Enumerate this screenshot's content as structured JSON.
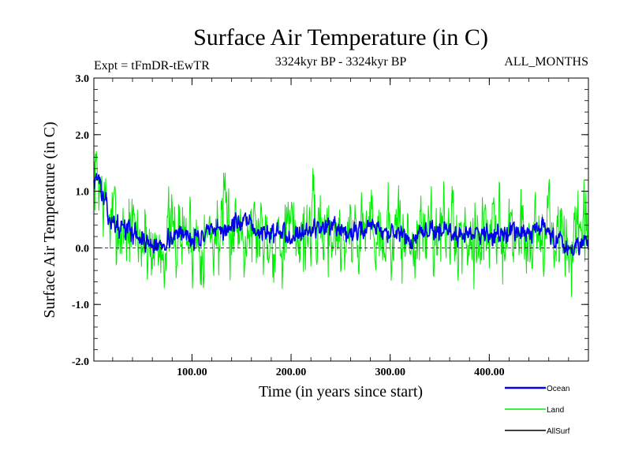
{
  "chart_data": {
    "type": "line",
    "title": "Surface Air Temperature (in C)",
    "subtitle_left": "Expt = tFmDR-tEwTR",
    "subtitle_center": "3324kyr BP - 3324kyr BP",
    "subtitle_right": "ALL_MONTHS",
    "xlabel": "Time (in years since start)",
    "ylabel": "Surface Air Temperature (in C)",
    "xlim": [
      1,
      500
    ],
    "ylim": [
      -2.0,
      3.0
    ],
    "x_ticks": [
      {
        "value": 100,
        "label": "100.00"
      },
      {
        "value": 200,
        "label": "200.00"
      },
      {
        "value": 300,
        "label": "300.00"
      },
      {
        "value": 400,
        "label": "400.00"
      }
    ],
    "y_ticks": [
      {
        "value": -2.0,
        "label": "-2.0"
      },
      {
        "value": -1.0,
        "label": "-1.0"
      },
      {
        "value": 0.0,
        "label": "0.0"
      },
      {
        "value": 1.0,
        "label": "1.0"
      },
      {
        "value": 2.0,
        "label": "2.0"
      },
      {
        "value": 3.0,
        "label": "3.0"
      }
    ],
    "reference_line": 0.0,
    "series": [
      {
        "name": "Land",
        "color": "#00ee00",
        "anchors": [
          [
            1,
            1.2
          ],
          [
            5,
            1.3
          ],
          [
            10,
            0.9
          ],
          [
            15,
            0.6
          ],
          [
            20,
            0.45
          ],
          [
            30,
            0.35
          ],
          [
            40,
            0.3
          ],
          [
            50,
            0.15
          ],
          [
            60,
            0.05
          ],
          [
            65,
            0.0
          ],
          [
            70,
            0.1
          ],
          [
            80,
            0.2
          ],
          [
            90,
            0.25
          ],
          [
            100,
            0.2
          ],
          [
            110,
            0.2
          ],
          [
            120,
            0.25
          ],
          [
            130,
            0.3
          ],
          [
            140,
            0.4
          ],
          [
            150,
            0.45
          ],
          [
            160,
            0.35
          ],
          [
            170,
            0.3
          ],
          [
            180,
            0.25
          ],
          [
            190,
            0.25
          ],
          [
            200,
            0.25
          ],
          [
            210,
            0.3
          ],
          [
            220,
            0.3
          ],
          [
            230,
            0.4
          ],
          [
            240,
            0.35
          ],
          [
            250,
            0.2
          ],
          [
            260,
            0.25
          ],
          [
            270,
            0.3
          ],
          [
            280,
            0.45
          ],
          [
            290,
            0.35
          ],
          [
            300,
            0.25
          ],
          [
            310,
            0.2
          ],
          [
            320,
            0.1
          ],
          [
            330,
            0.2
          ],
          [
            340,
            0.3
          ],
          [
            350,
            0.35
          ],
          [
            360,
            0.25
          ],
          [
            370,
            0.2
          ],
          [
            380,
            0.3
          ],
          [
            390,
            0.3
          ],
          [
            400,
            0.25
          ],
          [
            410,
            0.2
          ],
          [
            420,
            0.3
          ],
          [
            430,
            0.25
          ],
          [
            440,
            0.2
          ],
          [
            450,
            0.35
          ],
          [
            460,
            0.3
          ],
          [
            470,
            0.15
          ],
          [
            480,
            0.0
          ],
          [
            490,
            0.1
          ],
          [
            500,
            0.15
          ]
        ],
        "noise_amplitude": 0.62,
        "seed": 7
      },
      {
        "name": "Ocean",
        "color": "#0000ee",
        "anchors": [
          [
            1,
            1.2
          ],
          [
            5,
            1.3
          ],
          [
            10,
            0.9
          ],
          [
            15,
            0.6
          ],
          [
            20,
            0.45
          ],
          [
            30,
            0.35
          ],
          [
            40,
            0.3
          ],
          [
            50,
            0.15
          ],
          [
            60,
            0.05
          ],
          [
            65,
            0.0
          ],
          [
            70,
            0.1
          ],
          [
            80,
            0.2
          ],
          [
            90,
            0.25
          ],
          [
            100,
            0.2
          ],
          [
            110,
            0.2
          ],
          [
            120,
            0.25
          ],
          [
            130,
            0.3
          ],
          [
            140,
            0.4
          ],
          [
            150,
            0.45
          ],
          [
            160,
            0.35
          ],
          [
            170,
            0.3
          ],
          [
            180,
            0.25
          ],
          [
            190,
            0.25
          ],
          [
            200,
            0.25
          ],
          [
            210,
            0.3
          ],
          [
            220,
            0.3
          ],
          [
            230,
            0.4
          ],
          [
            240,
            0.35
          ],
          [
            250,
            0.2
          ],
          [
            260,
            0.25
          ],
          [
            270,
            0.3
          ],
          [
            280,
            0.45
          ],
          [
            290,
            0.35
          ],
          [
            300,
            0.25
          ],
          [
            310,
            0.2
          ],
          [
            320,
            0.1
          ],
          [
            330,
            0.2
          ],
          [
            340,
            0.3
          ],
          [
            350,
            0.35
          ],
          [
            360,
            0.25
          ],
          [
            370,
            0.2
          ],
          [
            380,
            0.3
          ],
          [
            390,
            0.3
          ],
          [
            400,
            0.25
          ],
          [
            410,
            0.2
          ],
          [
            420,
            0.3
          ],
          [
            430,
            0.25
          ],
          [
            440,
            0.2
          ],
          [
            450,
            0.35
          ],
          [
            460,
            0.3
          ],
          [
            470,
            0.15
          ],
          [
            480,
            0.0
          ],
          [
            490,
            0.1
          ],
          [
            500,
            0.15
          ]
        ],
        "noise_amplitude": 0.15,
        "seed": 13
      },
      {
        "name": "AllSurf",
        "color": "#000000",
        "anchors": [],
        "noise_amplitude": 0,
        "seed": 0
      }
    ],
    "legend": {
      "position": "bottom-right",
      "entries": [
        {
          "name": "Ocean",
          "color": "#0000ee"
        },
        {
          "name": "Land",
          "color": "#00ee00"
        },
        {
          "name": "AllSurf",
          "color": "#000000"
        }
      ]
    }
  }
}
